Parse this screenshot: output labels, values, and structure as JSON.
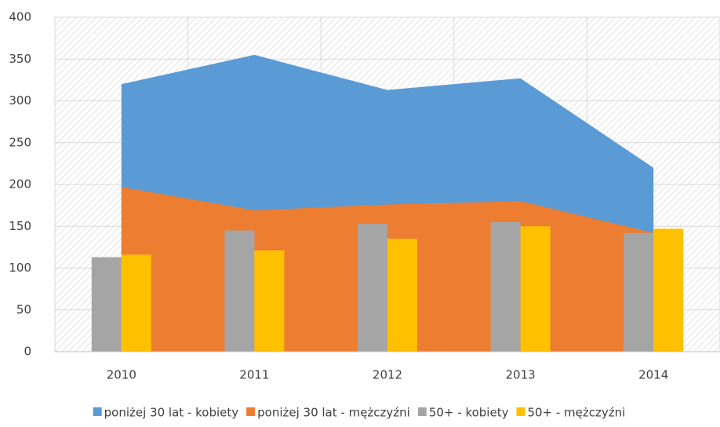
{
  "chart_data": {
    "type": "combo",
    "categories": [
      "2010",
      "2011",
      "2012",
      "2013",
      "2014"
    ],
    "series": [
      {
        "name": "poniżej 30 lat - kobiety",
        "type": "area",
        "color": "#5b9bd5",
        "values": [
          320,
          355,
          313,
          327,
          220
        ]
      },
      {
        "name": "poniżej 30 lat - mężczyźni",
        "type": "area",
        "color": "#ed7d31",
        "values": [
          197,
          169,
          176,
          180,
          142
        ]
      },
      {
        "name": "50+ - kobiety",
        "type": "bar",
        "color": "#a5a5a5",
        "values": [
          113,
          145,
          153,
          155,
          142
        ]
      },
      {
        "name": "50+ - mężczyźni",
        "type": "bar",
        "color": "#ffc000",
        "values": [
          116,
          121,
          135,
          150,
          147
        ]
      }
    ],
    "ylim": [
      0,
      400
    ],
    "yticks": [
      0,
      50,
      100,
      150,
      200,
      250,
      300,
      350,
      400
    ],
    "grid": true,
    "legend": "bottom"
  }
}
